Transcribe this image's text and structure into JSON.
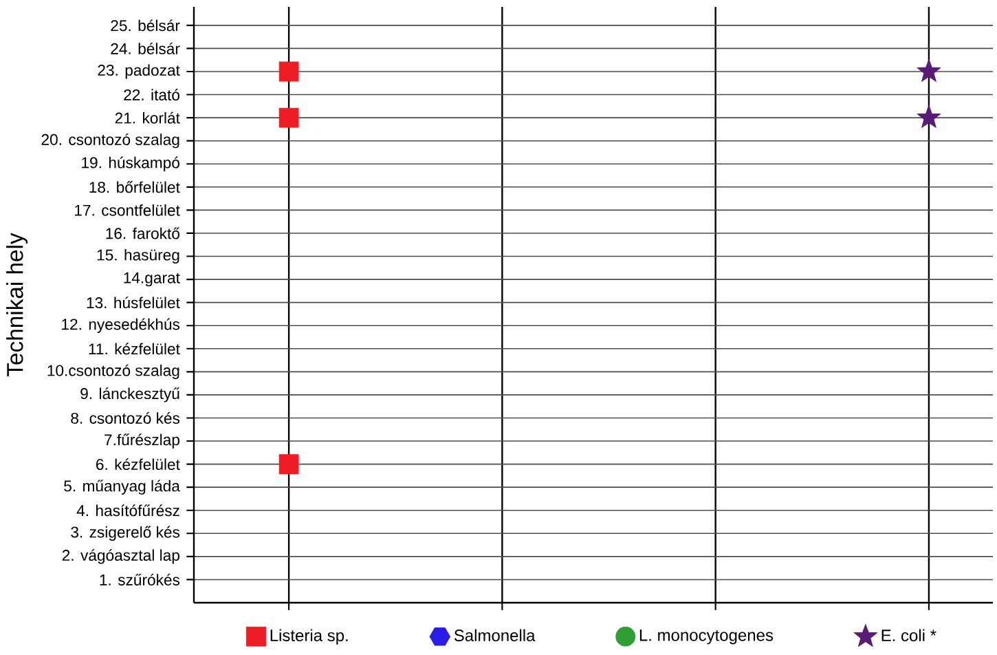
{
  "chart_data": {
    "type": "scatter",
    "ylabel": "Technikai hely",
    "categories": [
      null,
      null,
      null,
      null
    ],
    "ylim": [
      0,
      25.8
    ],
    "yticks": [
      {
        "value": 1,
        "label": "1. szűrókés"
      },
      {
        "value": 2,
        "label": "2. vágóasztal lap"
      },
      {
        "value": 3,
        "label": "3. zsigerelő kés"
      },
      {
        "value": 4,
        "label": "4. hasítófűrész"
      },
      {
        "value": 5,
        "label": "5. műanyag láda"
      },
      {
        "value": 6,
        "label": "6. kézfelület"
      },
      {
        "value": 7,
        "label": "7.fűrészlap"
      },
      {
        "value": 8,
        "label": "8. csontozó kés"
      },
      {
        "value": 9,
        "label": "9. lánckesztyű"
      },
      {
        "value": 10,
        "label": "10.csontozó szalag"
      },
      {
        "value": 11,
        "label": "11. kézfelület"
      },
      {
        "value": 12,
        "label": "12. nyesedékhús"
      },
      {
        "value": 13,
        "label": "13. húsfelület"
      },
      {
        "value": 14,
        "label": "14.garat"
      },
      {
        "value": 15,
        "label": "15. hasüreg"
      },
      {
        "value": 16,
        "label": "16. faroktő"
      },
      {
        "value": 17,
        "label": "17. csontfelület"
      },
      {
        "value": 18,
        "label": "18. bőrfelület"
      },
      {
        "value": 19,
        "label": "19. húskampó"
      },
      {
        "value": 20,
        "label": "20. csontozó szalag"
      },
      {
        "value": 21,
        "label": "21. korlát"
      },
      {
        "value": 22,
        "label": "22. itató"
      },
      {
        "value": 23,
        "label": "23. padozat"
      },
      {
        "value": 24,
        "label": "24. bélsár"
      },
      {
        "value": 25,
        "label": "25. bélsár"
      }
    ],
    "tick_labels": "y",
    "grid": true,
    "legend": "bottom",
    "series": [
      {
        "name": "Listeria sp.",
        "color": "#ee1c25",
        "marker": "square",
        "values": [
          23,
          null,
          null,
          null
        ]
      },
      {
        "color": "#ee1c25",
        "marker": "square",
        "values": [
          21,
          null,
          null,
          null
        ]
      },
      {
        "color": "#ee1c25",
        "marker": "square",
        "values": [
          6,
          null,
          null,
          null
        ]
      },
      {
        "name": "Salmonella",
        "color": "#2b1de8",
        "marker": "hexagon",
        "values": [
          null,
          null,
          null,
          null
        ]
      },
      {
        "name": "L. monocytogenes",
        "color": "#2e9e35",
        "marker": "circle",
        "values": [
          null,
          null,
          null,
          null
        ]
      },
      {
        "name": "E. coli *",
        "color": "#5a1a78",
        "marker": "star",
        "values": [
          null,
          null,
          null,
          23
        ]
      },
      {
        "color": "#5a1a78",
        "marker": "star",
        "values": [
          null,
          null,
          null,
          21
        ]
      }
    ]
  }
}
